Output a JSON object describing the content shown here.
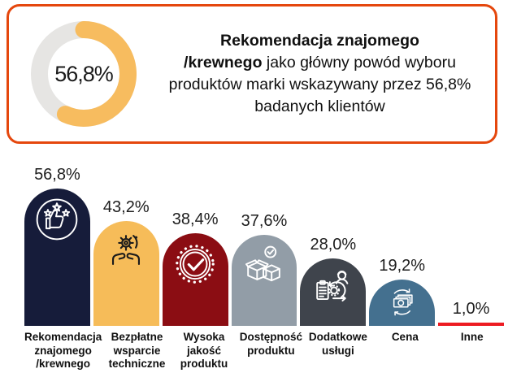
{
  "page": {
    "background": "#ffffff"
  },
  "infobox": {
    "border_color": "#E5470D",
    "donut": {
      "percent": 56.8,
      "percent_label": "56,8%",
      "arc_color": "#F7BC5F",
      "track_color": "#E6E5E3"
    },
    "headline_bold_line1": "Rekomendacja znajomego",
    "headline_bold_lead": "/krewnego",
    "headline_rest": " jako główny powód wyboru produktów marki wskazywany przez 56,8% badanych klientów"
  },
  "chart_data": {
    "type": "bar",
    "title": "",
    "xlabel": "",
    "ylabel": "",
    "ylim": [
      0,
      60
    ],
    "grid": false,
    "legend": false,
    "categories": [
      "Rekomendacja znajomego /krewnego",
      "Bezpłatne wsparcie techniczne",
      "Wysoka jakość produktu",
      "Dostępność produktu",
      "Dodatkowe usługi",
      "Cena",
      "Inne"
    ],
    "category_label_lines": [
      [
        "Rekomendacja",
        "znajomego",
        "/krewnego"
      ],
      [
        "Bezpłatne",
        "wsparcie",
        "techniczne"
      ],
      [
        "Wysoka",
        "jakość",
        "produktu"
      ],
      [
        "Dostępność",
        "produktu"
      ],
      [
        "Dodatkowe",
        "usługi"
      ],
      [
        "Cena"
      ],
      [
        "Inne"
      ]
    ],
    "values": [
      56.8,
      43.2,
      38.4,
      37.6,
      28.0,
      19.2,
      1.0
    ],
    "value_labels": [
      "56,8%",
      "43,2%",
      "38,4%",
      "37,6%",
      "28,0%",
      "19,2%",
      "1,0%"
    ],
    "bar_colors": [
      "#161C3A",
      "#F6BC59",
      "#8B0D13",
      "#929DA7",
      "#3F444C",
      "#44708F",
      "#ED1B22"
    ],
    "icon_names": [
      "thumbs-up-stars-icon",
      "hands-gear-icon",
      "badge-check-icon",
      "boxes-check-icon",
      "clipboard-cycle-icon",
      "money-cycle-icon",
      null
    ],
    "icon_colors": [
      "#ffffff",
      "#1b1b1b",
      "#ffffff",
      "#ffffff",
      "#ffffff",
      "#ffffff",
      null
    ]
  }
}
